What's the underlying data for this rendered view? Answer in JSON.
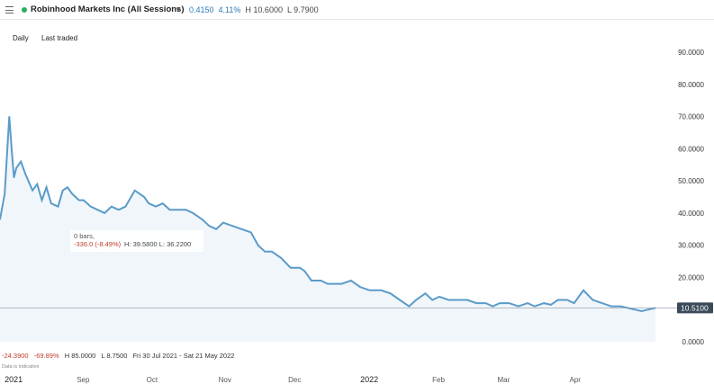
{
  "header": {
    "menu_icon": "hamburger-menu-icon",
    "status_icon": "green-dot-icon",
    "status_color": "#27ae60",
    "instrument": "Robinhood Markets Inc (All Sessions)",
    "caret_icon": "caret-down-icon",
    "change": "0.4150",
    "change_pct": "4.11%",
    "high": "H 10.6000",
    "low": "L 9.7900"
  },
  "tabs": {
    "interval": "Daily",
    "price_type": "Last traded"
  },
  "tooltip": {
    "bars": "0 bars,",
    "change": "-336.0 (-8.49%)",
    "rest": "H: 39.5800 L: 36.2200"
  },
  "stats": {
    "change": "-24.3900",
    "change_pct": "-69.89%",
    "high": "H 85.0000",
    "low": "L 8.7500",
    "range": "Fri 30 Jul 2021 - Sat 21 May 2022"
  },
  "note": "Data is indicative",
  "chart_data": {
    "type": "area",
    "line_color": "#5b9bc9",
    "fill_color": "#f1f6fb",
    "ylim": [
      0,
      90
    ],
    "yticks": [
      "90.0000",
      "80.0000",
      "70.0000",
      "60.0000",
      "50.0000",
      "40.0000",
      "30.0000",
      "20.0000",
      "10.0000",
      "0.0000"
    ],
    "ytick_values": [
      90,
      80,
      70,
      60,
      50,
      40,
      30,
      20,
      10,
      0
    ],
    "current_price": 10.51,
    "current_price_label": "10.5100",
    "xlim": [
      "2021-07-30",
      "2022-05-08"
    ],
    "xticks": [
      {
        "date": "2021-08-01",
        "label": "2021",
        "major": true
      },
      {
        "date": "2021-09-01",
        "label": "Sep",
        "major": false
      },
      {
        "date": "2021-10-01",
        "label": "Oct",
        "major": false
      },
      {
        "date": "2021-11-01",
        "label": "Nov",
        "major": false
      },
      {
        "date": "2021-12-01",
        "label": "Dec",
        "major": false
      },
      {
        "date": "2022-01-01",
        "label": "2022",
        "major": true
      },
      {
        "date": "2022-02-01",
        "label": "Feb",
        "major": false
      },
      {
        "date": "2022-03-01",
        "label": "Mar",
        "major": false
      },
      {
        "date": "2022-04-01",
        "label": "Apr",
        "major": false
      }
    ],
    "series": [
      {
        "x": [
          "2021-07-30",
          "2021-08-01",
          "2021-08-03",
          "2021-08-04",
          "2021-08-05",
          "2021-08-06",
          "2021-08-08",
          "2021-08-10",
          "2021-08-13",
          "2021-08-15",
          "2021-08-17",
          "2021-08-19",
          "2021-08-21",
          "2021-08-24",
          "2021-08-26",
          "2021-08-28",
          "2021-08-30",
          "2021-09-02",
          "2021-09-04",
          "2021-09-07",
          "2021-09-10",
          "2021-09-13",
          "2021-09-16",
          "2021-09-19",
          "2021-09-22",
          "2021-09-26",
          "2021-09-28",
          "2021-09-30",
          "2021-10-02",
          "2021-10-05",
          "2021-10-08",
          "2021-10-11",
          "2021-10-14",
          "2021-10-18",
          "2021-10-21",
          "2021-10-25",
          "2021-10-28",
          "2021-10-31",
          "2021-11-03",
          "2021-11-07",
          "2021-11-11",
          "2021-11-15",
          "2021-11-18",
          "2021-11-21",
          "2021-11-24",
          "2021-11-28",
          "2021-12-02",
          "2021-12-06",
          "2021-12-08",
          "2021-12-11",
          "2021-12-15",
          "2021-12-18",
          "2021-12-21",
          "2021-12-24",
          "2021-12-28",
          "2022-01-01",
          "2022-01-05",
          "2022-01-10",
          "2022-01-14",
          "2022-01-18",
          "2022-01-22",
          "2022-01-25",
          "2022-01-29",
          "2022-02-01",
          "2022-02-04",
          "2022-02-08",
          "2022-02-12",
          "2022-02-16",
          "2022-02-20",
          "2022-02-24",
          "2022-02-27",
          "2022-03-02",
          "2022-03-06",
          "2022-03-10",
          "2022-03-14",
          "2022-03-17",
          "2022-03-21",
          "2022-03-24",
          "2022-03-27",
          "2022-03-31",
          "2022-04-03",
          "2022-04-07",
          "2022-04-11",
          "2022-04-15",
          "2022-04-19",
          "2022-04-23",
          "2022-04-26",
          "2022-04-29",
          "2022-05-02",
          "2022-05-05",
          "2022-05-08"
        ],
        "y": [
          38,
          46,
          70,
          60,
          51,
          54,
          56,
          52,
          47,
          49,
          44,
          48,
          43,
          42,
          47,
          48,
          46,
          44,
          44,
          42,
          41,
          40,
          42,
          41,
          42,
          47,
          46,
          45,
          43,
          42,
          43,
          41,
          41,
          41,
          40,
          38,
          36,
          35,
          37,
          36,
          35,
          34,
          30,
          28,
          28,
          26,
          23,
          23,
          22,
          19,
          19,
          18,
          18,
          18,
          19,
          17,
          16,
          16,
          15,
          13,
          11,
          13,
          15,
          13,
          14,
          13,
          13,
          13,
          12,
          12,
          11,
          12,
          12,
          11,
          12,
          11,
          12,
          11.5,
          13,
          13,
          12,
          16,
          13,
          12,
          11,
          11,
          10.5,
          10,
          9.5,
          10,
          10.5
        ]
      }
    ]
  }
}
